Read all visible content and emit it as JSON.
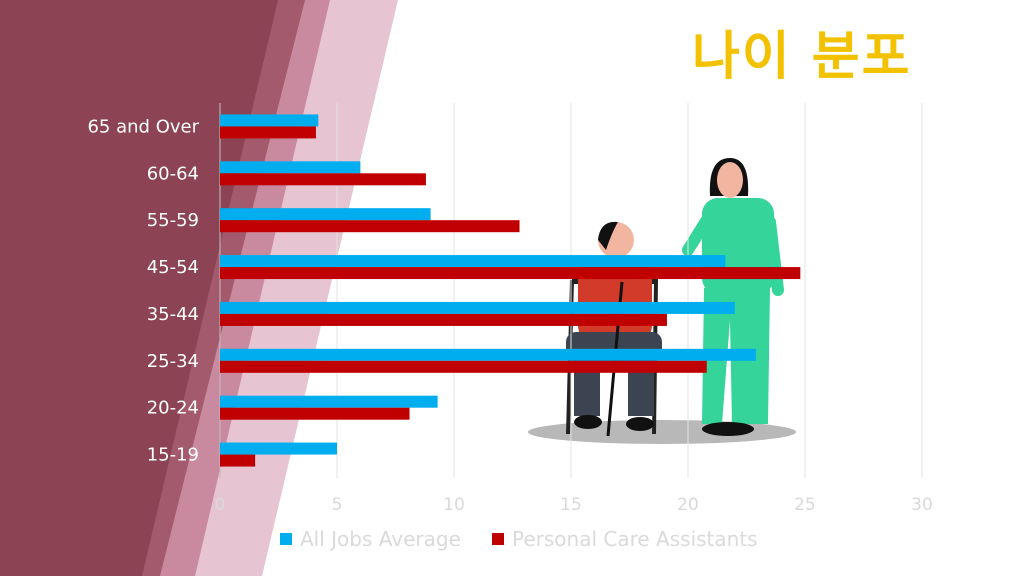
{
  "slide": {
    "title": "나이 분포"
  },
  "colors": {
    "all_jobs": "#00adef",
    "pca": "#c00000",
    "title": "#f2c200"
  },
  "chart_data": {
    "type": "bar",
    "orientation": "horizontal",
    "categories": [
      "65 and Over",
      "60-64",
      "55-59",
      "45-54",
      "35-44",
      "25-34",
      "20-24",
      "15-19"
    ],
    "series": [
      {
        "name": "All Jobs Average",
        "values": [
          4.2,
          6.0,
          9.0,
          21.6,
          22.0,
          22.9,
          9.3,
          5.0
        ]
      },
      {
        "name": "Personal Care Assistants",
        "values": [
          4.1,
          8.8,
          12.8,
          24.8,
          19.1,
          20.8,
          8.1,
          1.5
        ]
      }
    ],
    "xlim": [
      0,
      30
    ],
    "xticks": [
      0,
      5,
      10,
      15,
      20,
      25,
      30
    ],
    "grid": true,
    "legend": "bottom"
  }
}
